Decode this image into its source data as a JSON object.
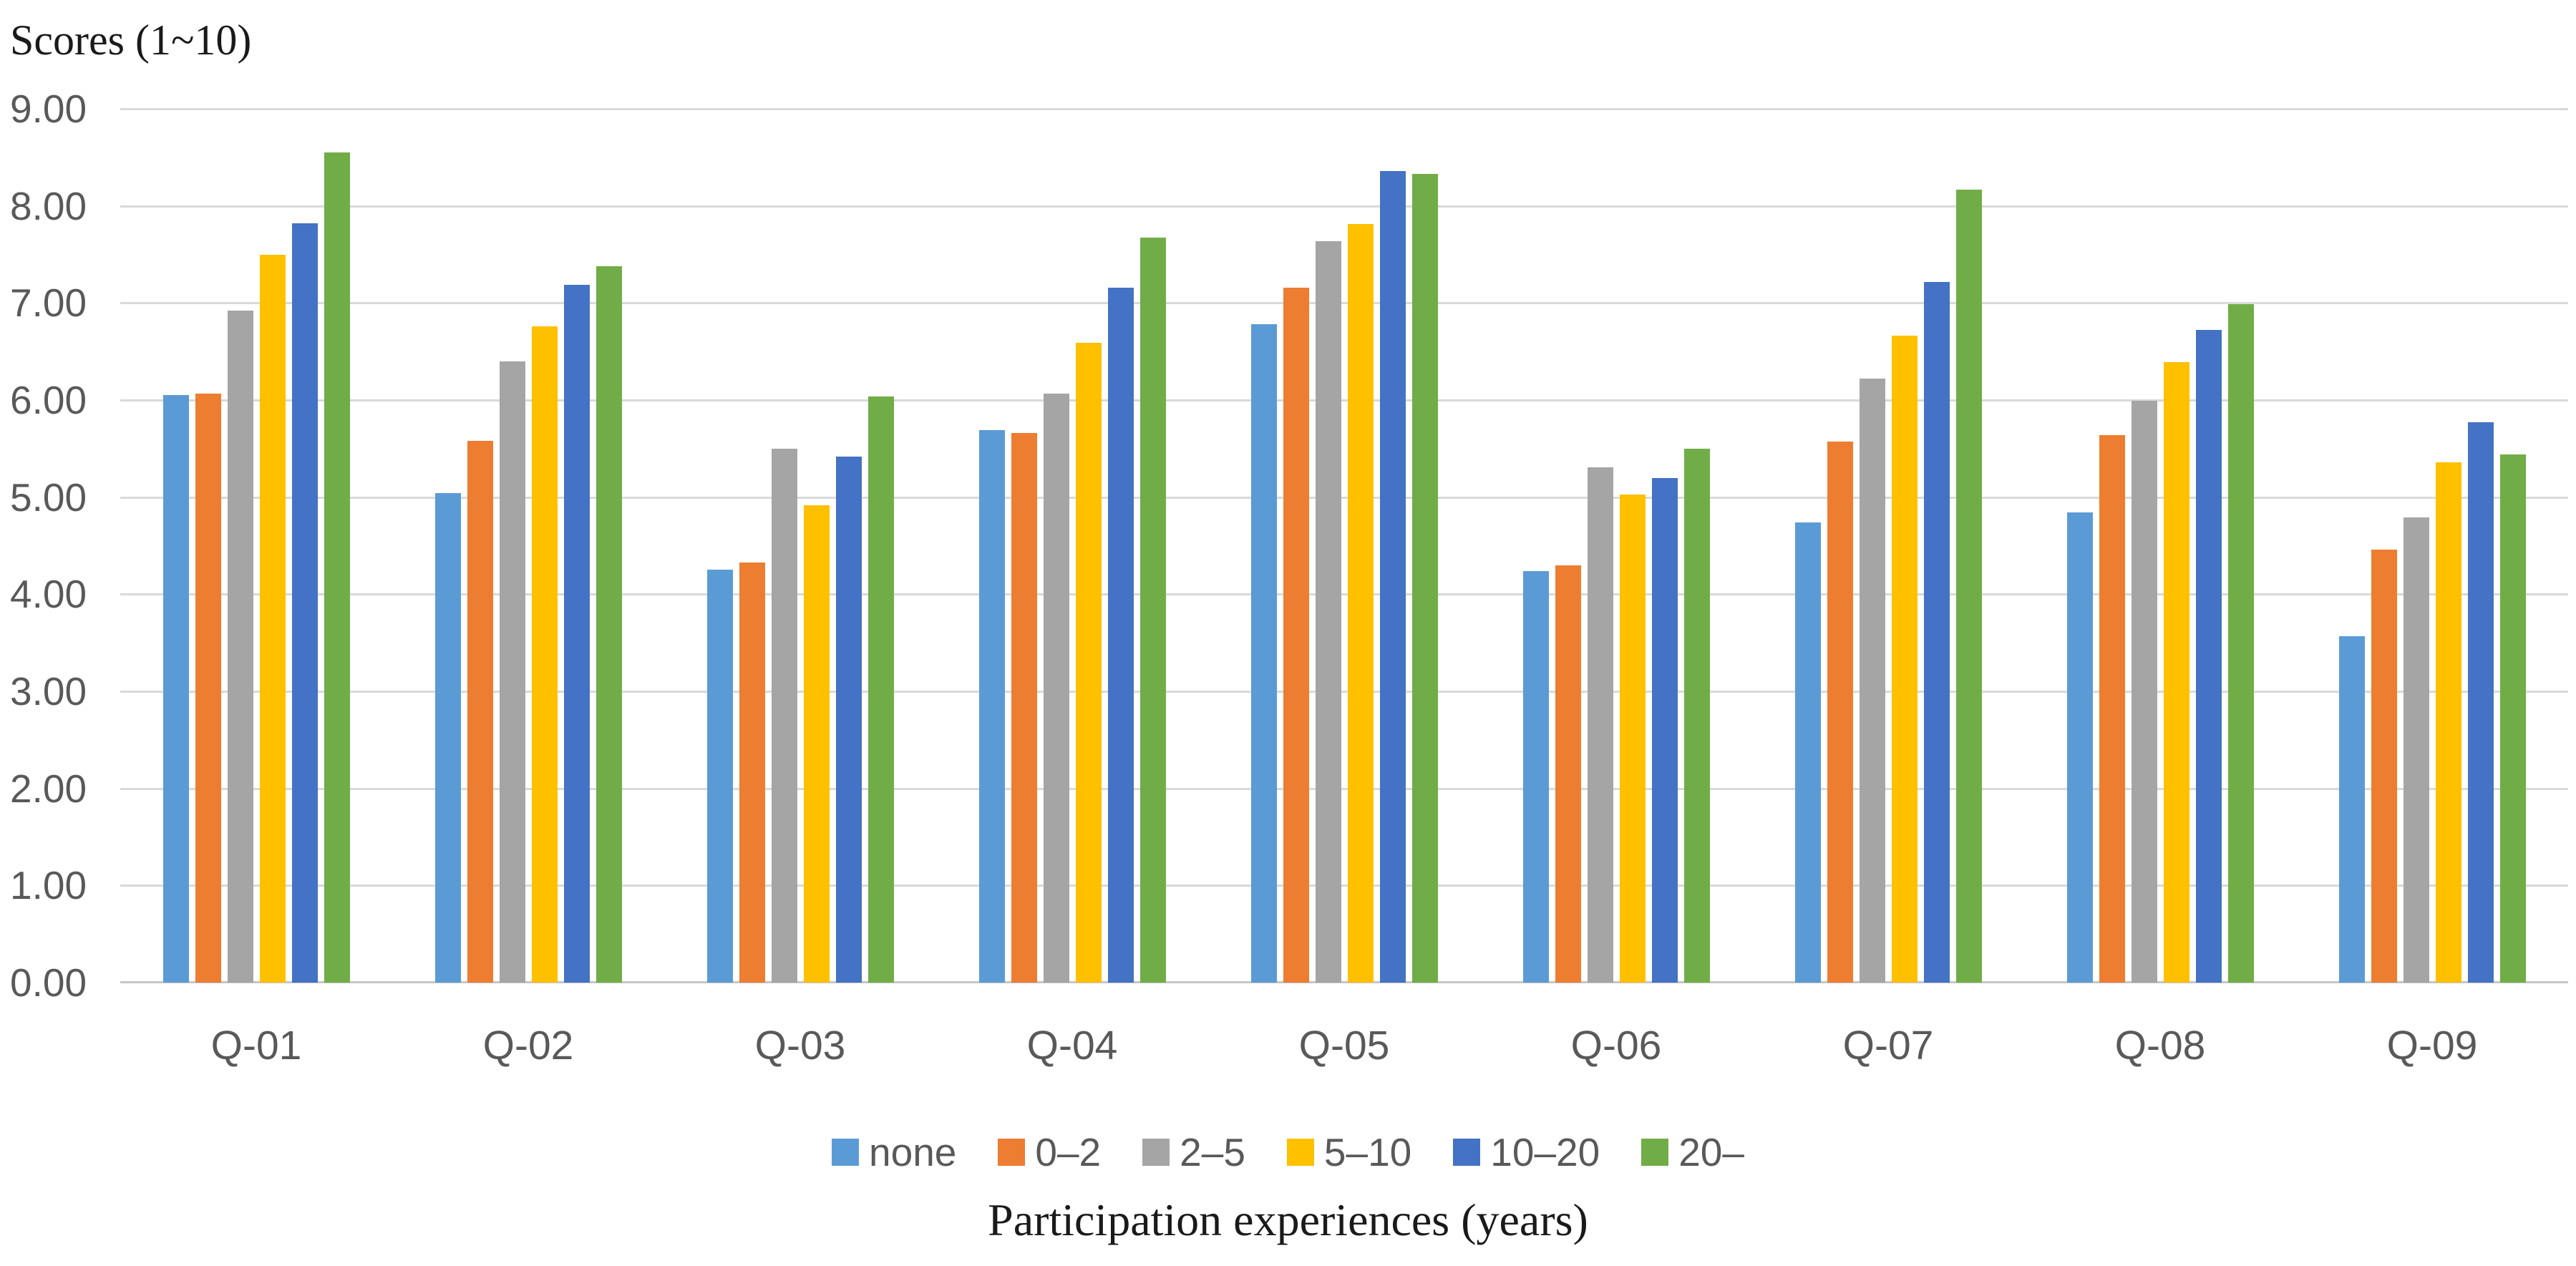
{
  "chart_data": {
    "type": "bar",
    "title": "",
    "y_axis_title": "Scores (1~10)",
    "xlabel": "Participation experiences (years)",
    "ylabel": "Scores (1~10)",
    "categories": [
      "Q-01",
      "Q-02",
      "Q-03",
      "Q-04",
      "Q-05",
      "Q-06",
      "Q-07",
      "Q-08",
      "Q-09"
    ],
    "series": [
      {
        "name": "none",
        "color": "#5B9BD5",
        "values": [
          6.05,
          5.04,
          4.25,
          5.69,
          6.78,
          4.24,
          4.74,
          4.84,
          3.57
        ]
      },
      {
        "name": "0–2",
        "color": "#ED7D31",
        "values": [
          6.07,
          5.58,
          4.33,
          5.66,
          7.16,
          4.3,
          5.57,
          5.64,
          4.46
        ]
      },
      {
        "name": "2–5",
        "color": "#A5A5A5",
        "values": [
          6.92,
          6.4,
          5.5,
          6.07,
          7.64,
          5.31,
          6.22,
          5.99,
          4.79
        ]
      },
      {
        "name": "5–10",
        "color": "#FFC000",
        "values": [
          7.5,
          6.76,
          4.92,
          6.59,
          7.81,
          5.03,
          6.66,
          6.39,
          5.36
        ]
      },
      {
        "name": "10–20",
        "color": "#4472C4",
        "values": [
          7.82,
          7.19,
          5.42,
          7.16,
          8.36,
          5.2,
          7.22,
          6.72,
          5.77
        ]
      },
      {
        "name": "20–",
        "color": "#70AD47",
        "values": [
          8.55,
          7.38,
          6.04,
          7.67,
          8.33,
          5.5,
          8.17,
          6.99,
          5.44
        ]
      }
    ],
    "ylim": [
      0,
      9
    ],
    "ytick_step": 1,
    "ytick_decimals": 2,
    "grid": true,
    "legend_position": "bottom",
    "gridline_color": "#D9D9D9",
    "tick_text_color": "#595959",
    "title_text_color": "#1A1A1A"
  }
}
